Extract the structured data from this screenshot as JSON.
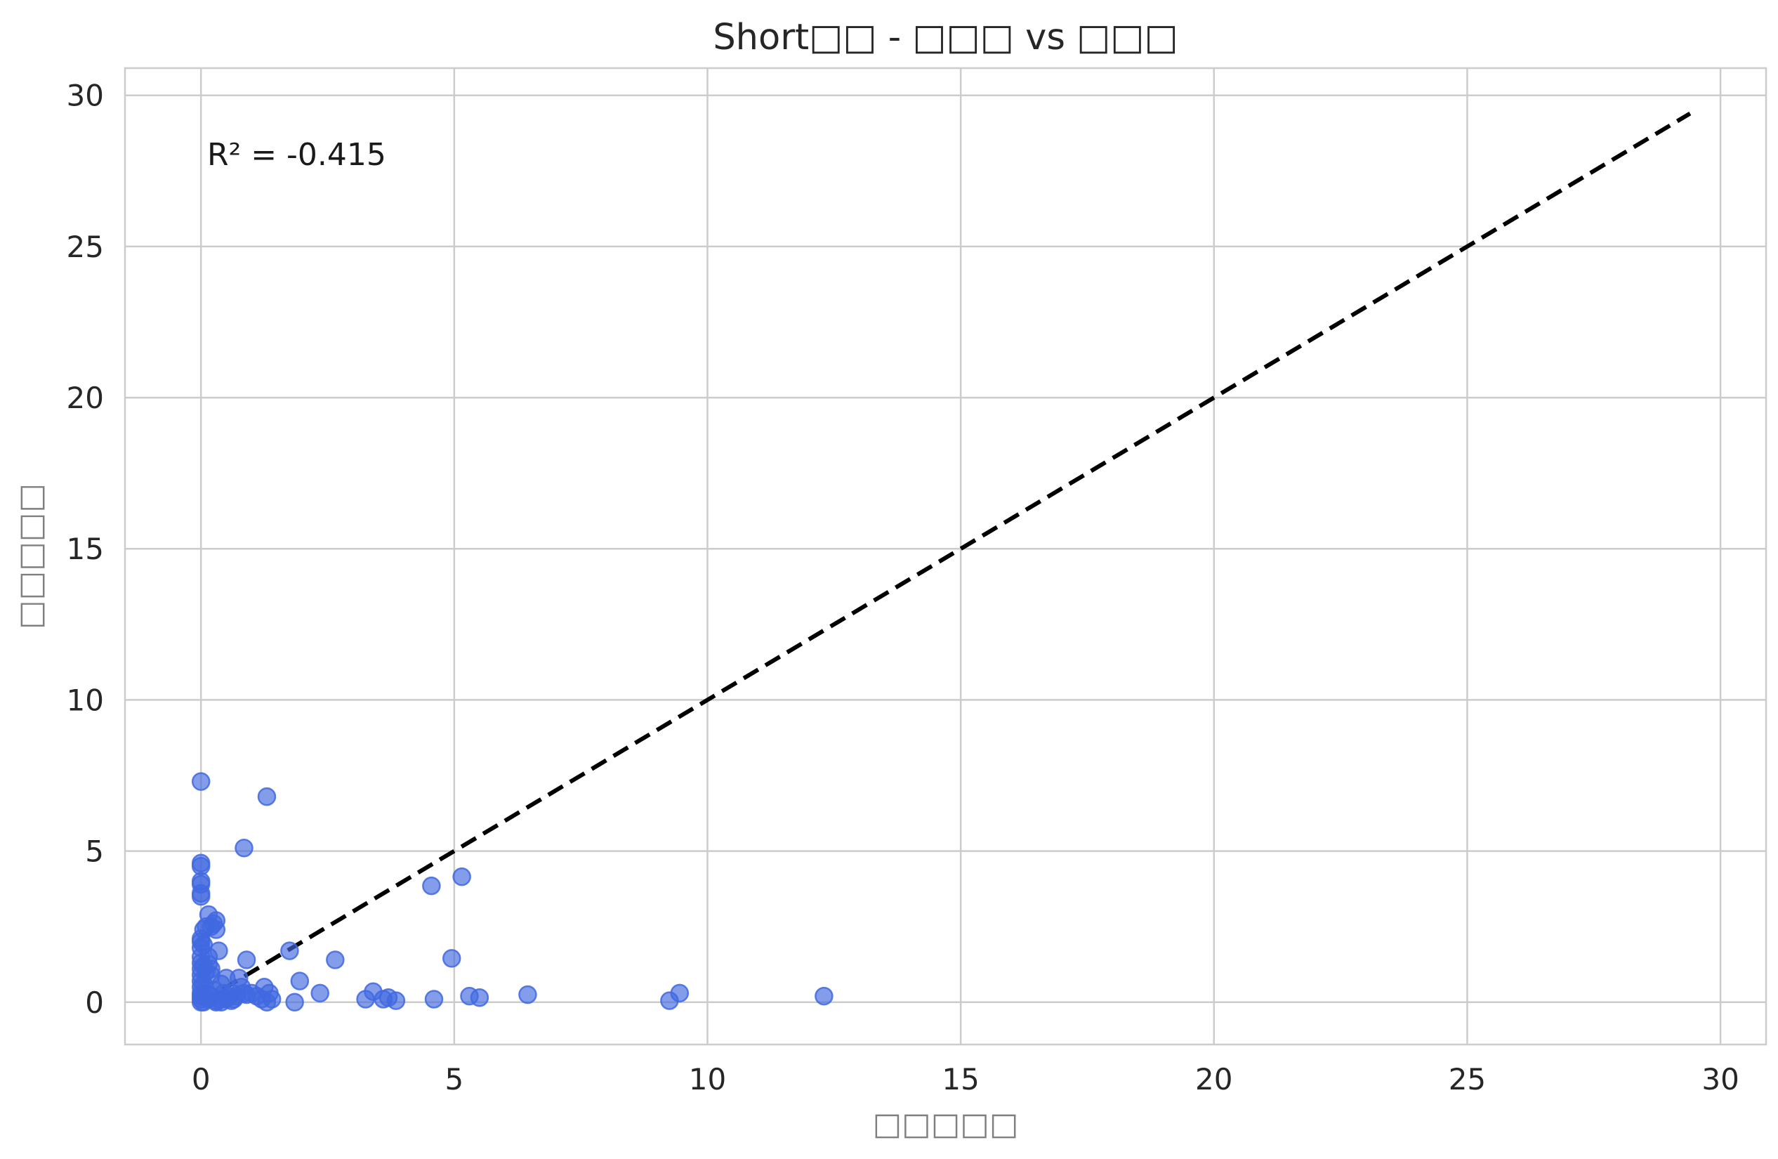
{
  "chart_data": {
    "type": "scatter",
    "title": "Short□□ - □□□ vs □□□",
    "xlabel": "□□□□□",
    "ylabel": "□□□□□",
    "xlim": [
      -1.5,
      30.9
    ],
    "ylim": [
      -1.4,
      30.9
    ],
    "xticks": [
      0,
      5,
      10,
      15,
      20,
      25,
      30
    ],
    "yticks": [
      0,
      5,
      10,
      15,
      20,
      25,
      30
    ],
    "grid": true,
    "annotation": "R² = -0.415",
    "reference_line": {
      "style": "dashed",
      "color": "#000000",
      "from": [
        0,
        0
      ],
      "to": [
        29.4,
        29.4
      ]
    },
    "series": [
      {
        "color": "#4169e1",
        "x": [
          0,
          0,
          0,
          0,
          0,
          0,
          0,
          0,
          0,
          0,
          0,
          0,
          0,
          0,
          0,
          0,
          0,
          0,
          0,
          0,
          0.05,
          0.05,
          0.05,
          0.05,
          0.05,
          0.1,
          0.1,
          0.1,
          0.15,
          0.15,
          0.15,
          0.2,
          0.2,
          0.2,
          0.25,
          0.25,
          0.3,
          0.3,
          0.3,
          0.35,
          0.4,
          0.4,
          0.45,
          0.5,
          0.5,
          0.55,
          0.6,
          0.65,
          0.7,
          0.75,
          0.8,
          0.85,
          0.9,
          1.0,
          1.1,
          1.2,
          1.25,
          1.3,
          1.35,
          1.4,
          0.85,
          1.3,
          1.75,
          1.95,
          1.85,
          2.35,
          2.65,
          3.25,
          3.4,
          3.6,
          3.7,
          3.85,
          4.55,
          4.6,
          4.95,
          5.15,
          5.3,
          5.5,
          6.45,
          9.25,
          9.45,
          12.3,
          0.15,
          0.2,
          0.3,
          0.4,
          0.6,
          0.9
        ],
        "y": [
          7.3,
          4.6,
          4.5,
          4.0,
          3.9,
          3.6,
          3.5,
          2.1,
          2.0,
          1.8,
          1.5,
          1.3,
          1.1,
          0.9,
          0.7,
          0.5,
          0.3,
          0.2,
          0.1,
          0.0,
          2.4,
          1.9,
          1.2,
          0.6,
          0.0,
          2.5,
          1.0,
          0.3,
          2.9,
          1.5,
          0.1,
          2.5,
          1.1,
          0.2,
          2.6,
          0.4,
          2.7,
          2.4,
          0.0,
          1.7,
          0.6,
          0.1,
          0.3,
          0.8,
          0.1,
          0.2,
          0.3,
          0.1,
          0.2,
          0.8,
          0.5,
          0.3,
          1.4,
          0.3,
          0.2,
          0.1,
          0.5,
          0.0,
          0.3,
          0.1,
          5.1,
          6.8,
          1.7,
          0.7,
          0.0,
          0.3,
          1.4,
          0.1,
          0.35,
          0.1,
          0.15,
          0.05,
          3.85,
          0.1,
          1.45,
          4.15,
          0.2,
          0.15,
          0.25,
          0.05,
          0.3,
          0.2,
          1.25,
          0.9,
          0.05,
          0.0,
          0.05,
          0.25
        ]
      }
    ]
  }
}
